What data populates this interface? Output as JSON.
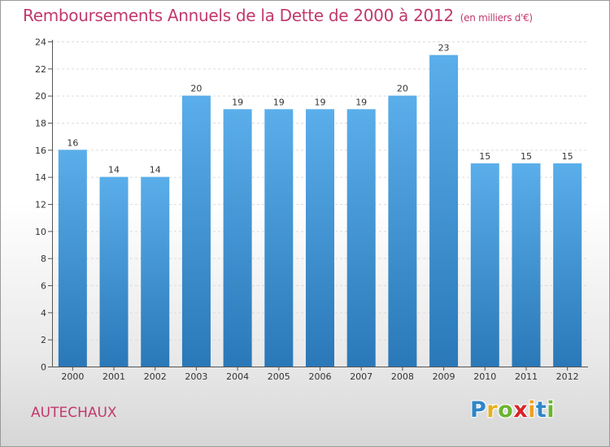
{
  "chart_data": {
    "type": "bar",
    "title": "Remboursements Annuels de la Dette de 2000 à 2012",
    "unit": "(en milliers d'€)",
    "categories": [
      "2000",
      "2001",
      "2002",
      "2003",
      "2004",
      "2005",
      "2006",
      "2007",
      "2008",
      "2009",
      "2010",
      "2011",
      "2012"
    ],
    "values": [
      16,
      14,
      14,
      20,
      19,
      19,
      19,
      19,
      20,
      23,
      15,
      15,
      15
    ],
    "ylim": [
      0,
      24
    ],
    "yticks": [
      0,
      2,
      4,
      6,
      8,
      10,
      12,
      14,
      16,
      18,
      20,
      22,
      24
    ],
    "grid": true,
    "data_labels": true,
    "bar_color_top": "#5aaeea",
    "bar_color_bottom": "#2a78b8"
  },
  "commune": "AUTECHAUX",
  "brand": {
    "letters": [
      "P",
      "r",
      "o",
      "x",
      "i",
      "t",
      "i"
    ],
    "colors": [
      "#2f86c8",
      "#e8b020",
      "#6bb52f",
      "#d8232a",
      "#f0a020",
      "#2f86c8",
      "#6bb52f"
    ]
  }
}
